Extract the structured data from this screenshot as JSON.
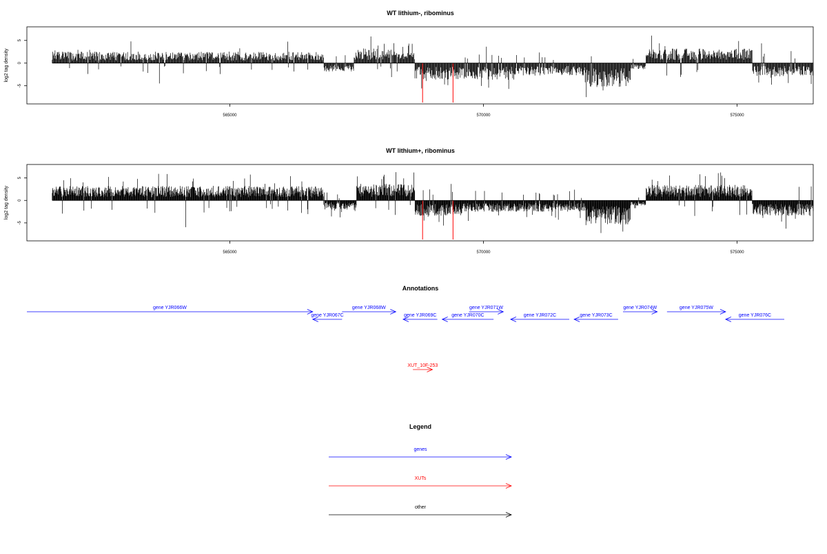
{
  "colors": {
    "gene": "#0000ff",
    "xut": "#ff0000",
    "other": "#000000",
    "signal": "#000000",
    "highlight": "#ff0000"
  },
  "chart_data": [
    {
      "type": "bar",
      "title": "WT lithium-, ribominus",
      "ylabel": "log2 tag density",
      "xlim": [
        561000,
        576500
      ],
      "ylim": [
        -9,
        8
      ],
      "x_ticks": [
        565000,
        570000,
        575000
      ],
      "x_tick_labels": [
        "565000",
        "570000",
        "575000"
      ],
      "y_ticks": [
        -5,
        0,
        5
      ],
      "y_tick_labels": [
        "-5",
        "0",
        "5"
      ],
      "grid": false,
      "legend": "none",
      "coverage": {
        "x_start": 561500,
        "x_end": 576500,
        "step": 11
      },
      "segments": [
        {
          "from": 561500,
          "to": 566850,
          "sign": 1,
          "level": 2.2
        },
        {
          "from": 566850,
          "to": 567450,
          "sign": -1,
          "level": 1.6
        },
        {
          "from": 567450,
          "to": 568250,
          "sign": 1,
          "level": 2.8
        },
        {
          "from": 568250,
          "to": 568650,
          "sign": 1,
          "level": 2.0
        },
        {
          "from": 568650,
          "to": 570600,
          "sign": -1,
          "level": 3.2
        },
        {
          "from": 570600,
          "to": 572000,
          "sign": -1,
          "level": 2.4
        },
        {
          "from": 572000,
          "to": 572900,
          "sign": -1,
          "level": 4.6
        },
        {
          "from": 572900,
          "to": 573200,
          "sign": -1,
          "level": 1.2
        },
        {
          "from": 573200,
          "to": 575300,
          "sign": 1,
          "level": 2.8
        },
        {
          "from": 575300,
          "to": 576500,
          "sign": -1,
          "level": 2.6
        }
      ],
      "highlights": [
        {
          "x": 568800,
          "value": -8.7
        },
        {
          "x": 569400,
          "value": -8.7
        }
      ]
    },
    {
      "type": "bar",
      "title": "WT lithium+, ribominus",
      "ylabel": "log2 tag density",
      "xlim": [
        561000,
        576500
      ],
      "ylim": [
        -9,
        8
      ],
      "x_ticks": [
        565000,
        570000,
        575000
      ],
      "x_tick_labels": [
        "565000",
        "570000",
        "575000"
      ],
      "y_ticks": [
        -5,
        0,
        5
      ],
      "y_tick_labels": [
        "-5",
        "0",
        "5"
      ],
      "grid": false,
      "legend": "none",
      "coverage": {
        "x_start": 561500,
        "x_end": 576500,
        "step": 8
      },
      "segments": [
        {
          "from": 561500,
          "to": 566850,
          "sign": 1,
          "level": 2.8
        },
        {
          "from": 566850,
          "to": 567500,
          "sign": -1,
          "level": 1.8
        },
        {
          "from": 567500,
          "to": 568650,
          "sign": 1,
          "level": 3.2
        },
        {
          "from": 568650,
          "to": 569600,
          "sign": -1,
          "level": 3.2
        },
        {
          "from": 569600,
          "to": 572000,
          "sign": -1,
          "level": 2.2
        },
        {
          "from": 572000,
          "to": 572900,
          "sign": -1,
          "level": 4.8
        },
        {
          "from": 572900,
          "to": 573200,
          "sign": -1,
          "level": 1.0
        },
        {
          "from": 573200,
          "to": 575300,
          "sign": 1,
          "level": 3.0
        },
        {
          "from": 575300,
          "to": 576500,
          "sign": -1,
          "level": 3.0
        }
      ],
      "highlights": [
        {
          "x": 568800,
          "value": -8.7
        },
        {
          "x": 569400,
          "value": -8.7
        }
      ]
    }
  ],
  "annotations": {
    "title": "Annotations",
    "xlim": [
      561000,
      576500
    ],
    "features": [
      {
        "label": "gene YJR066W",
        "start": 561000,
        "end": 566850,
        "strand": "+",
        "kind": "gene",
        "row": 0
      },
      {
        "label": "gene YJR067C",
        "start": 566850,
        "end": 567450,
        "strand": "-",
        "kind": "gene",
        "row": 1
      },
      {
        "label": "gene YJR068W",
        "start": 567450,
        "end": 568550,
        "strand": "+",
        "kind": "gene",
        "row": 0
      },
      {
        "label": "gene YJR069C",
        "start": 568700,
        "end": 569400,
        "strand": "-",
        "kind": "gene",
        "row": 1
      },
      {
        "label": "gene YJR070C",
        "start": 569500,
        "end": 570550,
        "strand": "-",
        "kind": "gene",
        "row": 1
      },
      {
        "label": "gene YJR071W",
        "start": 570050,
        "end": 570750,
        "strand": "+",
        "kind": "gene",
        "row": 0
      },
      {
        "label": "gene YJR072C",
        "start": 570900,
        "end": 572100,
        "strand": "-",
        "kind": "gene",
        "row": 1
      },
      {
        "label": "gene YJR073C",
        "start": 572200,
        "end": 573100,
        "strand": "-",
        "kind": "gene",
        "row": 1
      },
      {
        "label": "gene YJR074W",
        "start": 573200,
        "end": 573900,
        "strand": "+",
        "kind": "gene",
        "row": 0
      },
      {
        "label": "gene YJR075W",
        "start": 574100,
        "end": 575300,
        "strand": "+",
        "kind": "gene",
        "row": 0
      },
      {
        "label": "gene YJR076C",
        "start": 575300,
        "end": 576500,
        "strand": "-",
        "kind": "gene",
        "row": 1
      },
      {
        "label": "XUT_10F-253",
        "start": 568900,
        "end": 569300,
        "strand": "+",
        "kind": "xut",
        "row": 2
      }
    ]
  },
  "legend": {
    "title": "Legend",
    "items": [
      {
        "label": "genes",
        "kind": "gene"
      },
      {
        "label": "XUTs",
        "kind": "xut"
      },
      {
        "label": "other",
        "kind": "other"
      }
    ]
  }
}
